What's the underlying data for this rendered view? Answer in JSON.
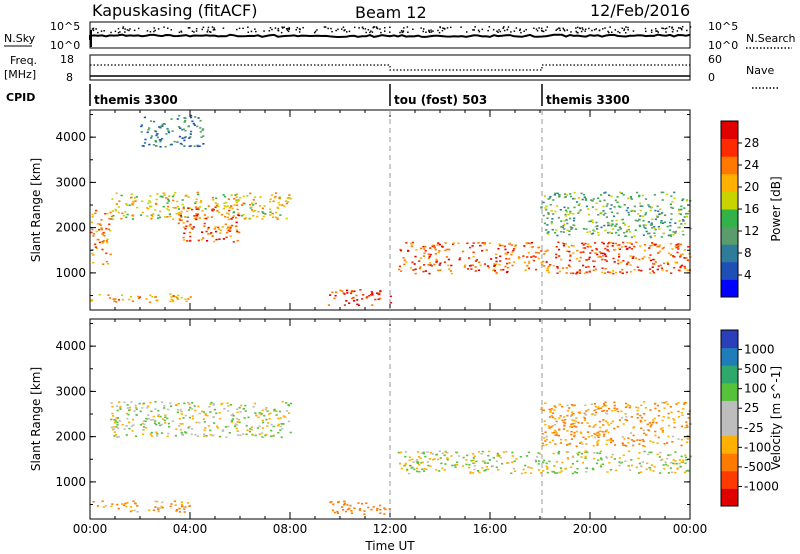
{
  "header": {
    "station": "Kapuskasing (fitACF)",
    "beam": "Beam 12",
    "date": "12/Feb/2016"
  },
  "noise_panel": {
    "left_label": "N.Sky",
    "right_label": "N.Search",
    "left_ticks": [
      "10^5",
      "10^0"
    ],
    "right_ticks": [
      "10^5",
      "10^0"
    ]
  },
  "freq_panel": {
    "left_label_1": "Freq.",
    "left_label_2": "[MHz]",
    "right_label": "Nave",
    "left_ticks": [
      "18",
      "8"
    ],
    "right_ticks": [
      "60",
      "0"
    ]
  },
  "cpid": {
    "label": "CPID",
    "modes": [
      {
        "start_hour": 0,
        "name": "themis 3300"
      },
      {
        "start_hour": 12,
        "name": "tou (fost) 503"
      },
      {
        "start_hour": 18,
        "name": "themis 3300"
      }
    ]
  },
  "colors": {
    "power_scale": [
      "#0000ff",
      "#1e4fb5",
      "#2e7b9c",
      "#5a9c6b",
      "#33b24a",
      "#c8d400",
      "#ffb000",
      "#ff7800",
      "#ff2a00",
      "#e00000"
    ],
    "velocity_scale": [
      "#2b3fb8",
      "#1f7db8",
      "#2ea86b",
      "#55c23a",
      "#bdbdbd",
      "#bdbdbd",
      "#ffb000",
      "#ff7a00",
      "#ff3a00",
      "#e00000"
    ]
  },
  "chart_data": [
    {
      "type": "heatmap",
      "panel": "power",
      "title": "",
      "ylabel": "Slant Range [km]",
      "xlabel": "",
      "xlim": [
        0,
        24
      ],
      "ylim": [
        180,
        4600
      ],
      "yticks": [
        1000,
        2000,
        3000,
        4000
      ],
      "colorbar": {
        "label": "Power [dB]",
        "ticks": [
          "4",
          "8",
          "12",
          "16",
          "20",
          "24",
          "28"
        ],
        "range": [
          0,
          30
        ]
      },
      "series": [
        {
          "hours": [
            0.0,
            4.0
          ],
          "range_km": [
            350,
            550
          ],
          "value_db": 20
        },
        {
          "hours": [
            0.8,
            8.0
          ],
          "range_km": [
            2200,
            2800
          ],
          "value_db": 18
        },
        {
          "hours": [
            0.0,
            0.8
          ],
          "range_km": [
            1200,
            2400
          ],
          "value_db": 22
        },
        {
          "hours": [
            3.5,
            6.0
          ],
          "range_km": [
            1700,
            2500
          ],
          "value_db": 24
        },
        {
          "hours": [
            9.5,
            12.0
          ],
          "range_km": [
            300,
            650
          ],
          "value_db": 26
        },
        {
          "hours": [
            12.3,
            24.0
          ],
          "range_km": [
            1000,
            1700
          ],
          "value_db": 24
        },
        {
          "hours": [
            18.0,
            24.0
          ],
          "range_km": [
            1800,
            2800
          ],
          "value_db": 12
        },
        {
          "hours": [
            2.0,
            4.5
          ],
          "range_km": [
            3800,
            4500
          ],
          "value_db": 8
        }
      ]
    },
    {
      "type": "heatmap",
      "panel": "velocity",
      "title": "",
      "ylabel": "Slant Range [km]",
      "xlabel": "Time UT",
      "xlim": [
        0,
        24
      ],
      "ylim": [
        180,
        4600
      ],
      "yticks": [
        1000,
        2000,
        3000,
        4000
      ],
      "xticks": [
        "00:00",
        "04:00",
        "08:00",
        "12:00",
        "16:00",
        "20:00",
        "00:00"
      ],
      "colorbar": {
        "label": "Velocity [m s^-1]",
        "ticks": [
          "1000",
          "500",
          "100",
          "25",
          "-25",
          "-100",
          "-500",
          "-1000"
        ]
      },
      "series": [
        {
          "hours": [
            0.8,
            8.0
          ],
          "range_km": [
            2000,
            2800
          ],
          "value_ms": 0
        },
        {
          "hours": [
            12.3,
            24.0
          ],
          "range_km": [
            1200,
            1700
          ],
          "value_ms": 0
        },
        {
          "hours": [
            0.0,
            4.0
          ],
          "range_km": [
            350,
            600
          ],
          "value_ms": -100
        },
        {
          "hours": [
            9.5,
            12.0
          ],
          "range_km": [
            300,
            600
          ],
          "value_ms": -300
        },
        {
          "hours": [
            18.0,
            24.0
          ],
          "range_km": [
            1800,
            2800
          ],
          "value_ms": -100
        }
      ]
    }
  ]
}
